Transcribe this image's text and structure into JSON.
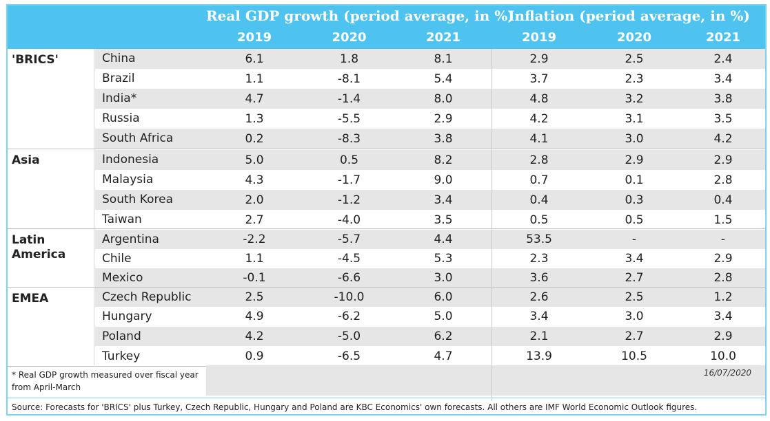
{
  "header": {
    "gdp_title": "Real GDP growth (period average, in %)",
    "inflation_title": "Inflation (period average, in %)",
    "years": [
      "2019",
      "2020",
      "2021",
      "2019",
      "2020",
      "2021"
    ]
  },
  "groups": [
    {
      "label": "'BRICS'",
      "rows": [
        {
          "country": "China",
          "gdp": [
            "6.1",
            "1.8",
            "8.1"
          ],
          "inf": [
            "2.9",
            "2.5",
            "2.4"
          ]
        },
        {
          "country": "Brazil",
          "gdp": [
            "1.1",
            "-8.1",
            "5.4"
          ],
          "inf": [
            "3.7",
            "2.3",
            "3.4"
          ]
        },
        {
          "country": "India*",
          "gdp": [
            "4.7",
            "-1.4",
            "8.0"
          ],
          "inf": [
            "4.8",
            "3.2",
            "3.8"
          ]
        },
        {
          "country": "Russia",
          "gdp": [
            "1.3",
            "-5.5",
            "2.9"
          ],
          "inf": [
            "4.2",
            "3.1",
            "3.5"
          ]
        },
        {
          "country": "South Africa",
          "gdp": [
            "0.2",
            "-8.3",
            "3.8"
          ],
          "inf": [
            "4.1",
            "3.0",
            "4.2"
          ]
        }
      ]
    },
    {
      "label": "Asia",
      "rows": [
        {
          "country": "Indonesia",
          "gdp": [
            "5.0",
            "0.5",
            "8.2"
          ],
          "inf": [
            "2.8",
            "2.9",
            "2.9"
          ]
        },
        {
          "country": "Malaysia",
          "gdp": [
            "4.3",
            "-1.7",
            "9.0"
          ],
          "inf": [
            "0.7",
            "0.1",
            "2.8"
          ]
        },
        {
          "country": "South Korea",
          "gdp": [
            "2.0",
            "-1.2",
            "3.4"
          ],
          "inf": [
            "0.4",
            "0.3",
            "0.4"
          ]
        },
        {
          "country": "Taiwan",
          "gdp": [
            "2.7",
            "-4.0",
            "3.5"
          ],
          "inf": [
            "0.5",
            "0.5",
            "1.5"
          ]
        }
      ]
    },
    {
      "label": "Latin America",
      "rows": [
        {
          "country": "Argentina",
          "gdp": [
            "-2.2",
            "-5.7",
            "4.4"
          ],
          "inf": [
            "53.5",
            "-",
            "-"
          ]
        },
        {
          "country": "Chile",
          "gdp": [
            "1.1",
            "-4.5",
            "5.3"
          ],
          "inf": [
            "2.3",
            "3.4",
            "2.9"
          ]
        },
        {
          "country": "Mexico",
          "gdp": [
            "-0.1",
            "-6.6",
            "3.0"
          ],
          "inf": [
            "3.6",
            "2.7",
            "2.8"
          ]
        }
      ]
    },
    {
      "label": "EMEA",
      "rows": [
        {
          "country": "Czech Republic",
          "gdp": [
            "2.5",
            "-10.0",
            "6.0"
          ],
          "inf": [
            "2.6",
            "2.5",
            "1.2"
          ]
        },
        {
          "country": "Hungary",
          "gdp": [
            "4.9",
            "-6.2",
            "5.0"
          ],
          "inf": [
            "3.4",
            "3.0",
            "3.4"
          ]
        },
        {
          "country": "Poland",
          "gdp": [
            "4.2",
            "-5.0",
            "6.2"
          ],
          "inf": [
            "2.1",
            "2.7",
            "2.9"
          ]
        },
        {
          "country": "Turkey",
          "gdp": [
            "0.9",
            "-6.5",
            "4.7"
          ],
          "inf": [
            "13.9",
            "10.5",
            "10.0"
          ]
        }
      ]
    }
  ],
  "footnote": "* Real GDP growth measured over fiscal year from April-March",
  "date": "16/07/2020",
  "source": "Source: Forecasts for 'BRICS' plus Turkey, Czech Republic, Hungary and Poland are KBC Economics' own forecasts. All others are IMF World Economic Outlook figures.",
  "colors": {
    "header": "#4fc3ef",
    "border": "#7ad3ef",
    "stripe": "#e6e6e6"
  }
}
